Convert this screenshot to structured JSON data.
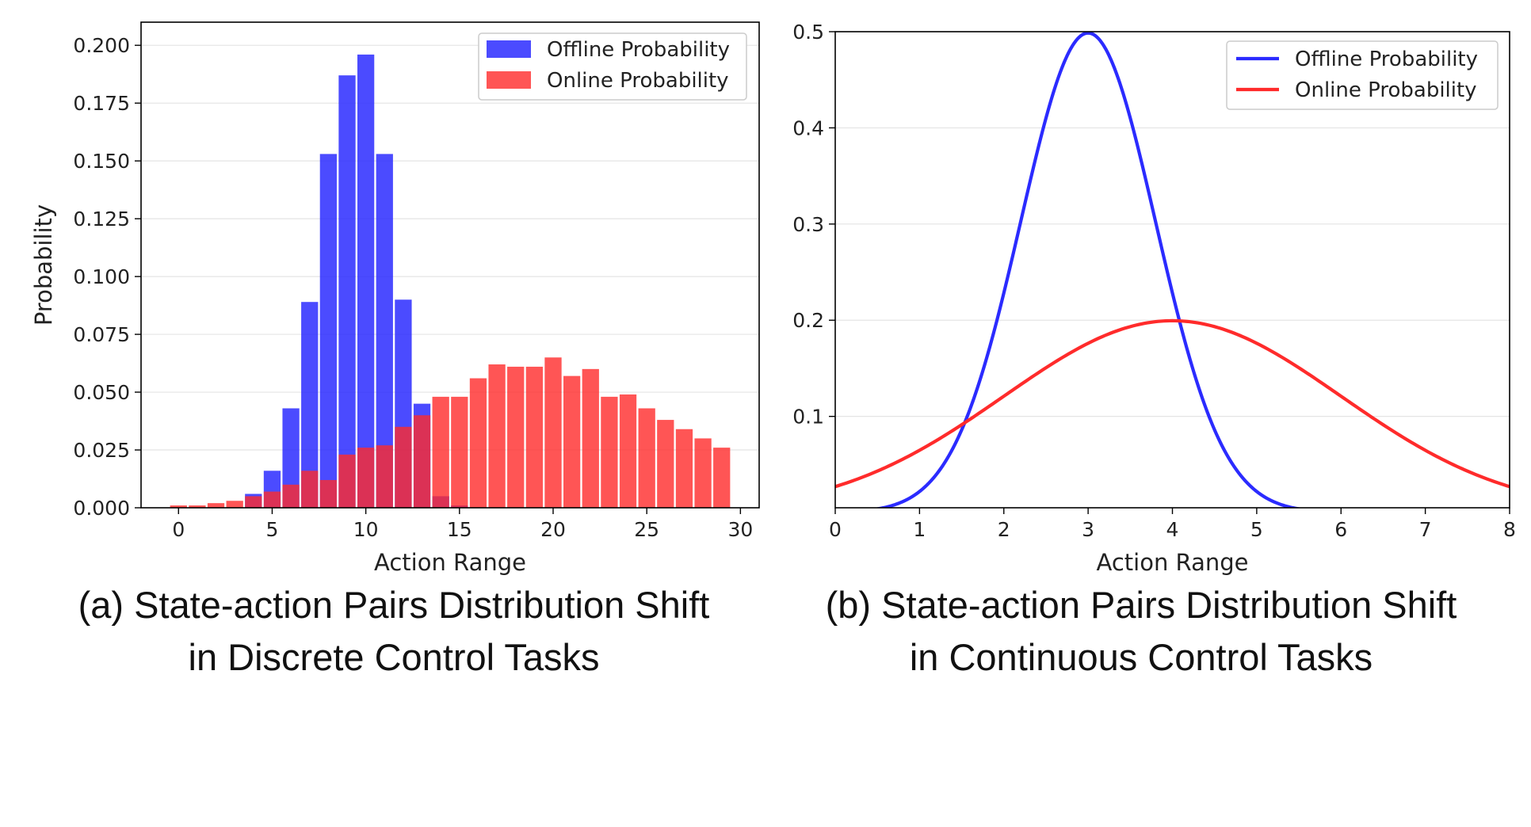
{
  "chart_data": [
    {
      "id": "a",
      "type": "bar",
      "xlabel": "Action Range",
      "ylabel": "Probability",
      "xlim": [
        -2,
        31
      ],
      "ylim": [
        0,
        0.21
      ],
      "xticks": [
        0,
        5,
        10,
        15,
        20,
        25,
        30
      ],
      "xtick_labels": [
        "0",
        "5",
        "10",
        "15",
        "20",
        "25",
        "30"
      ],
      "yticks": [
        0,
        0.025,
        0.05,
        0.075,
        0.1,
        0.125,
        0.15,
        0.175,
        0.2
      ],
      "ytick_labels": [
        "0.000",
        "0.025",
        "0.050",
        "0.075",
        "0.100",
        "0.125",
        "0.150",
        "0.175",
        "0.200"
      ],
      "grid": "horizontal",
      "legend_position": "top-right",
      "x": [
        0,
        1,
        2,
        3,
        4,
        5,
        6,
        7,
        8,
        9,
        10,
        11,
        12,
        13,
        14,
        15,
        16,
        17,
        18,
        19,
        20,
        21,
        22,
        23,
        24,
        25,
        26,
        27,
        28,
        29
      ],
      "series": [
        {
          "name": "Offline Probability",
          "color": "#2b2bff",
          "opacity": 0.85,
          "values": [
            0,
            0,
            0,
            0,
            0.006,
            0.016,
            0.043,
            0.089,
            0.153,
            0.187,
            0.196,
            0.153,
            0.09,
            0.045,
            0.005,
            0.001,
            0,
            0,
            0,
            0,
            0,
            0,
            0,
            0,
            0,
            0,
            0,
            0,
            0,
            0
          ]
        },
        {
          "name": "Online Probability",
          "color": "#ff2b2b",
          "opacity": 0.8,
          "values": [
            0.001,
            0.001,
            0.002,
            0.003,
            0.005,
            0.007,
            0.01,
            0.016,
            0.012,
            0.023,
            0.026,
            0.027,
            0.035,
            0.04,
            0.048,
            0.048,
            0.056,
            0.062,
            0.061,
            0.061,
            0.065,
            0.057,
            0.06,
            0.048,
            0.049,
            0.043,
            0.038,
            0.034,
            0.03,
            0.026
          ]
        }
      ],
      "caption": [
        "(a) State-action Pairs Distribution Shift",
        "in Discrete Control Tasks"
      ]
    },
    {
      "id": "b",
      "type": "line",
      "xlabel": "Action Range",
      "ylabel": "",
      "xlim": [
        0,
        8
      ],
      "ylim": [
        0.005,
        0.5
      ],
      "xticks": [
        0,
        1,
        2,
        3,
        4,
        5,
        6,
        7,
        8
      ],
      "xtick_labels": [
        "0",
        "1",
        "2",
        "3",
        "4",
        "5",
        "6",
        "7",
        "8"
      ],
      "yticks": [
        0.1,
        0.2,
        0.3,
        0.4,
        0.5
      ],
      "ytick_labels": [
        "0.1",
        "0.2",
        "0.3",
        "0.4",
        "0.5"
      ],
      "grid": "horizontal",
      "legend_position": "top-right",
      "series": [
        {
          "name": "Offline Probability",
          "color": "#2b2bff",
          "distribution": "normal",
          "mean": 3,
          "std": 0.8,
          "x": [
            0.5,
            1.0,
            1.5,
            2.0,
            2.5,
            3.0,
            3.5,
            4.0,
            4.5,
            5.0,
            5.5
          ],
          "y": [
            0.005,
            0.027,
            0.087,
            0.229,
            0.412,
            0.5,
            0.412,
            0.229,
            0.087,
            0.022,
            0.004
          ]
        },
        {
          "name": "Online Probability",
          "color": "#ff2b2b",
          "distribution": "normal",
          "mean": 4,
          "std": 2,
          "x": [
            0,
            1,
            2,
            3,
            4,
            5,
            6,
            7,
            8
          ],
          "y": [
            0.027,
            0.065,
            0.121,
            0.176,
            0.2,
            0.176,
            0.121,
            0.065,
            0.027
          ]
        }
      ],
      "caption": [
        "(b) State-action Pairs Distribution Shift",
        "in Continuous Control Tasks"
      ]
    }
  ]
}
